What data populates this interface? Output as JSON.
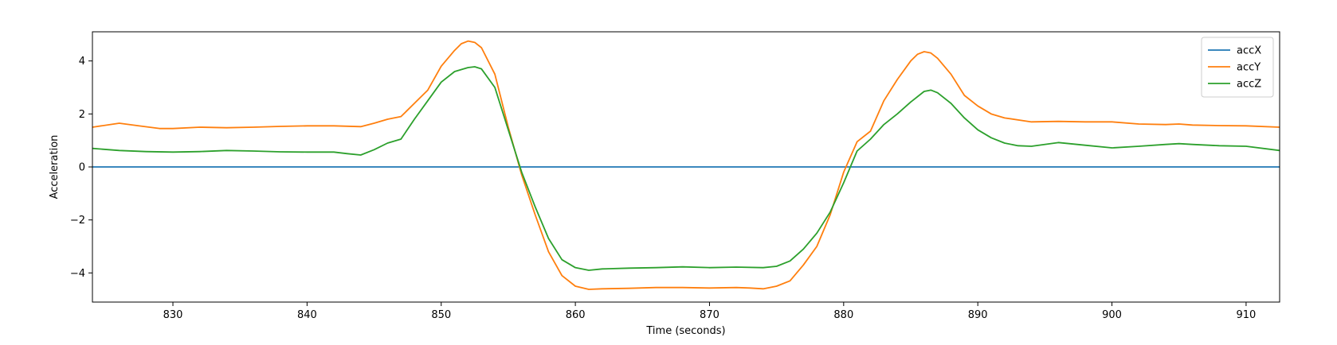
{
  "chart_data": {
    "type": "line",
    "xlabel": "Time (seconds)",
    "ylabel": "Acceleration",
    "xlim": [
      824,
      912.5
    ],
    "ylim": [
      -5.1,
      5.1
    ],
    "xticks": [
      830,
      840,
      850,
      860,
      870,
      880,
      890,
      900,
      910
    ],
    "yticks": [
      -4,
      -2,
      0,
      2,
      4
    ],
    "grid": false,
    "legend_position": "top-right",
    "series": [
      {
        "name": "accX",
        "color": "#1f77b4",
        "x": [
          824,
          912.5
        ],
        "y": [
          0,
          0
        ]
      },
      {
        "name": "accY",
        "color": "#ff7f0e",
        "x": [
          824,
          826,
          827.5,
          829,
          830,
          832,
          834,
          836,
          838,
          840,
          842,
          844,
          845,
          846,
          847,
          848,
          849,
          850,
          851,
          851.5,
          852,
          852.5,
          853,
          854,
          855,
          856,
          857,
          858,
          859,
          860,
          861,
          862,
          864,
          866,
          868,
          870,
          872,
          873,
          874,
          875,
          876,
          877,
          878,
          879,
          880,
          881,
          882,
          883,
          884,
          885,
          885.5,
          886,
          886.5,
          887,
          888,
          889,
          890,
          891,
          892,
          894,
          896,
          898,
          900,
          902,
          904,
          905,
          906,
          908,
          910,
          912.5
        ],
        "y": [
          1.5,
          1.65,
          1.55,
          1.45,
          1.45,
          1.5,
          1.48,
          1.5,
          1.53,
          1.55,
          1.55,
          1.52,
          1.65,
          1.8,
          1.9,
          2.4,
          2.9,
          3.8,
          4.4,
          4.65,
          4.75,
          4.7,
          4.5,
          3.5,
          1.5,
          -0.3,
          -1.8,
          -3.2,
          -4.1,
          -4.5,
          -4.62,
          -4.6,
          -4.58,
          -4.55,
          -4.55,
          -4.57,
          -4.55,
          -4.57,
          -4.6,
          -4.5,
          -4.3,
          -3.7,
          -3.0,
          -1.8,
          -0.2,
          0.95,
          1.35,
          2.5,
          3.3,
          4.0,
          4.25,
          4.35,
          4.3,
          4.1,
          3.5,
          2.7,
          2.3,
          2.0,
          1.85,
          1.7,
          1.72,
          1.7,
          1.7,
          1.62,
          1.6,
          1.62,
          1.58,
          1.56,
          1.55,
          1.5
        ]
      },
      {
        "name": "accZ",
        "color": "#2ca02c",
        "x": [
          824,
          826,
          828,
          830,
          832,
          834,
          836,
          838,
          840,
          842,
          843,
          844,
          845,
          846,
          847,
          848,
          849,
          850,
          851,
          852,
          852.5,
          853,
          854,
          855,
          856,
          857,
          858,
          859,
          860,
          861,
          862,
          864,
          866,
          868,
          870,
          872,
          874,
          875,
          876,
          877,
          878,
          879,
          880,
          881,
          882,
          883,
          884,
          885,
          886,
          886.5,
          887,
          888,
          889,
          890,
          891,
          892,
          893,
          894,
          896,
          898,
          900,
          902,
          904,
          905,
          906,
          908,
          910,
          912.5
        ],
        "y": [
          0.7,
          0.62,
          0.58,
          0.56,
          0.58,
          0.62,
          0.6,
          0.57,
          0.56,
          0.56,
          0.5,
          0.45,
          0.65,
          0.9,
          1.05,
          1.8,
          2.5,
          3.2,
          3.6,
          3.75,
          3.78,
          3.7,
          3.0,
          1.4,
          -0.2,
          -1.5,
          -2.7,
          -3.5,
          -3.8,
          -3.9,
          -3.85,
          -3.82,
          -3.8,
          -3.77,
          -3.8,
          -3.78,
          -3.8,
          -3.75,
          -3.55,
          -3.1,
          -2.5,
          -1.7,
          -0.6,
          0.6,
          1.05,
          1.6,
          2.0,
          2.45,
          2.85,
          2.9,
          2.8,
          2.4,
          1.85,
          1.4,
          1.1,
          0.9,
          0.8,
          0.78,
          0.92,
          0.82,
          0.72,
          0.78,
          0.85,
          0.88,
          0.85,
          0.8,
          0.78,
          0.62
        ]
      }
    ]
  }
}
